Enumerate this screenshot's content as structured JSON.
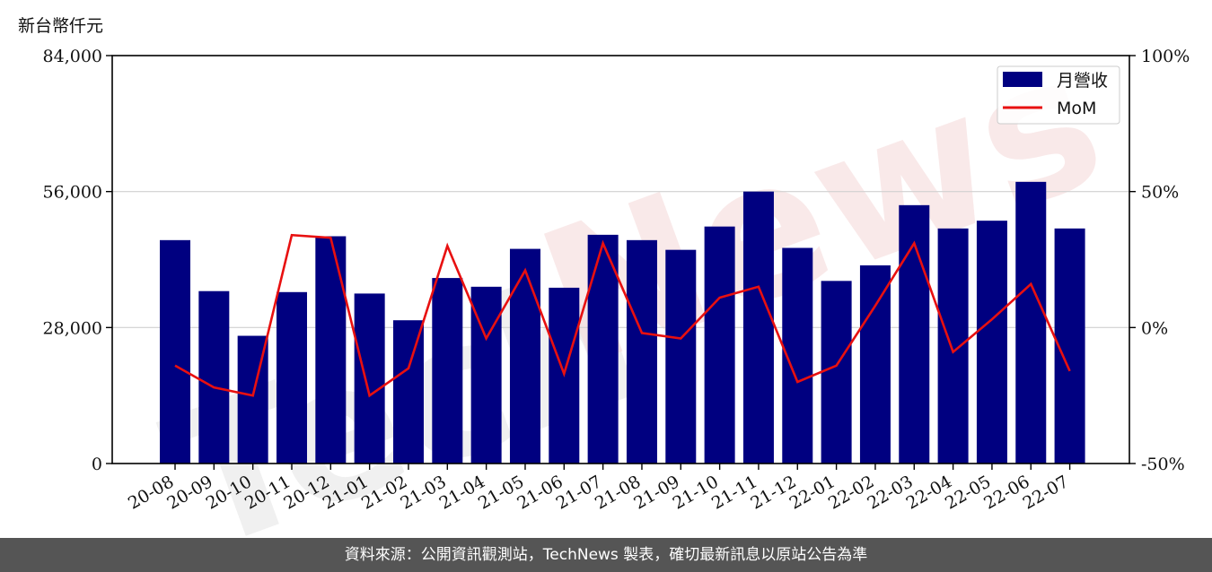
{
  "unit_label": "新台幣仟元",
  "footer_text": "資料來源：公開資訊觀測站，TechNews 製表，確切最新訊息以原站公告為準",
  "watermark": {
    "part1": "Tech",
    "part2": "News"
  },
  "colors": {
    "bar": "#000080",
    "line": "#e81010",
    "grid": "#d0d0d0"
  },
  "chart_data": {
    "type": "bar",
    "categories": [
      "20-08",
      "20-09",
      "20-10",
      "20-11",
      "20-12",
      "21-01",
      "21-02",
      "21-03",
      "21-04",
      "21-05",
      "21-06",
      "21-07",
      "21-08",
      "21-09",
      "21-10",
      "21-11",
      "21-12",
      "22-01",
      "22-02",
      "22-03",
      "22-04",
      "22-05",
      "22-06",
      "22-07"
    ],
    "series": [
      {
        "name": "月營收",
        "type": "bar",
        "axis": "left",
        "values": [
          46000,
          35500,
          26300,
          35300,
          46800,
          35000,
          29500,
          38200,
          36400,
          44200,
          36200,
          47100,
          46000,
          44000,
          48800,
          56000,
          44400,
          37600,
          40800,
          53200,
          48400,
          50000,
          58000,
          48400
        ]
      },
      {
        "name": "MoM",
        "type": "line",
        "axis": "right",
        "values": [
          -14,
          -22,
          -25,
          34,
          33,
          -25,
          -15,
          30,
          -4,
          21,
          -17,
          31,
          -2,
          -4,
          11,
          15,
          -20,
          -14,
          8,
          31,
          -9,
          3,
          16,
          -16
        ]
      }
    ],
    "y_left": {
      "ylim": [
        0,
        84000
      ],
      "ticks": [
        0,
        28000,
        56000,
        84000
      ],
      "tick_labels": [
        "0",
        "28,000",
        "56,000",
        "84,000"
      ]
    },
    "y_right": {
      "ylim": [
        -50,
        100
      ],
      "ticks": [
        -50,
        0,
        50,
        100
      ],
      "tick_labels": [
        "-50%",
        "0%",
        "50%",
        "100%"
      ]
    },
    "grid": "horizontal",
    "legend": "top-right"
  }
}
